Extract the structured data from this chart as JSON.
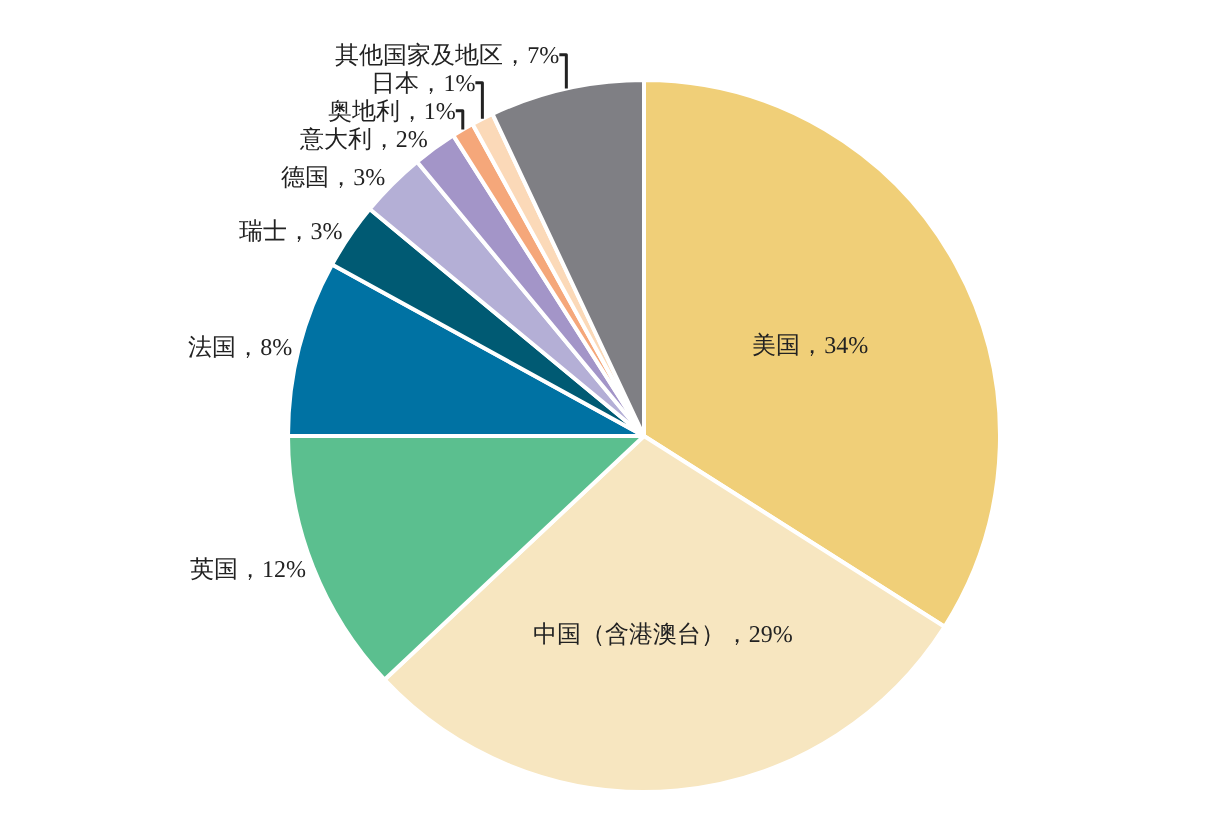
{
  "chart_data": {
    "type": "pie",
    "categories": [
      "美国",
      "中国（含港澳台）",
      "英国",
      "法国",
      "瑞士",
      "德国",
      "意大利",
      "奥地利",
      "日本",
      "其他国家及地区"
    ],
    "values": [
      34,
      29,
      12,
      8,
      3,
      3,
      2,
      1,
      1,
      7
    ],
    "value_labels": [
      "34%",
      "29%",
      "12%",
      "8%",
      "3%",
      "3%",
      "2%",
      "1%",
      "1%",
      "7%"
    ],
    "colors": [
      "#f0cf78",
      "#f7e6c0",
      "#5bbf8f",
      "#0072a3",
      "#005a73",
      "#b4afd6",
      "#a395c8",
      "#f5a77a",
      "#fbd9b8",
      "#7f7f84"
    ],
    "legend": false
  }
}
